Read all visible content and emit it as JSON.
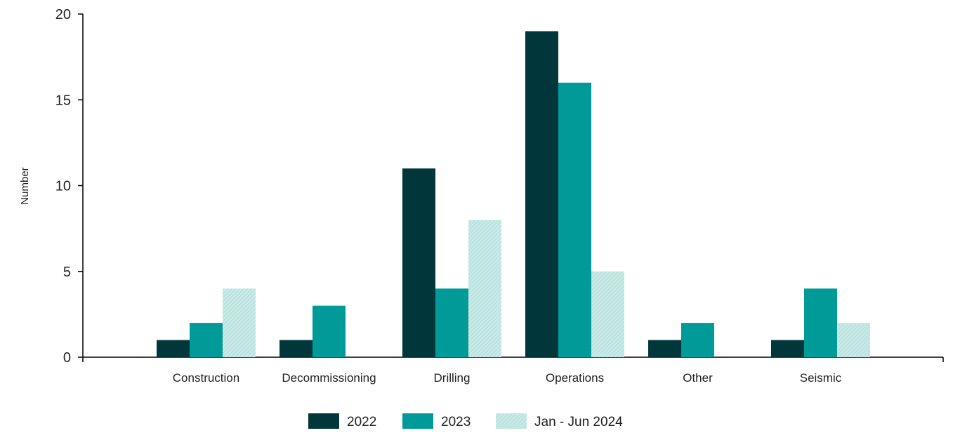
{
  "chart_data": {
    "type": "bar",
    "categories": [
      "Construction",
      "Decommissioning",
      "Drilling",
      "Operations",
      "Other",
      "Seismic"
    ],
    "series": [
      {
        "name": "2022",
        "values": [
          1,
          1,
          11,
          19,
          1,
          1
        ],
        "color": "#01373a"
      },
      {
        "name": "2023",
        "values": [
          2,
          3,
          4,
          16,
          2,
          4
        ],
        "color": "#009a98"
      },
      {
        "name": "Jan - Jun 2024",
        "values": [
          4,
          0,
          8,
          5,
          0,
          2
        ],
        "color": "#c8e9e6",
        "pattern": "hatched"
      }
    ],
    "title": "",
    "xlabel": "",
    "ylabel": "Number",
    "ylim": [
      0,
      20
    ],
    "yticks": [
      0,
      5,
      10,
      15,
      20
    ],
    "grid": false,
    "legend_position": "bottom"
  }
}
